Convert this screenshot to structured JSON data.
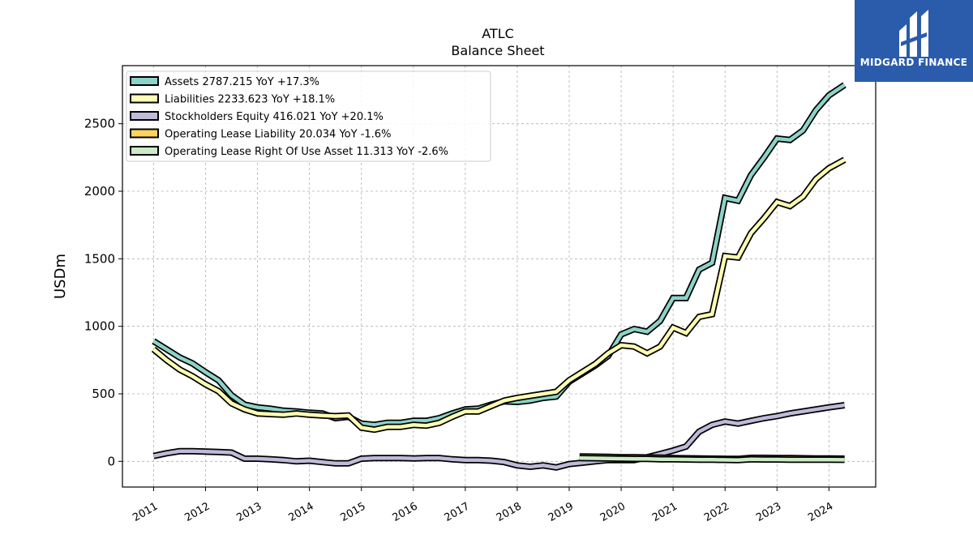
{
  "brand": {
    "name": "MIDGARD FINANCE",
    "bg_color": "#2b5cab"
  },
  "chart_data": {
    "type": "line",
    "title": "ATLC",
    "subtitle": "Balance  Sheet",
    "xlabel": "",
    "ylabel": "USDm",
    "xlim": [
      2010.4,
      2024.9
    ],
    "ylim": [
      -190,
      2930
    ],
    "yticks": [
      0,
      500,
      1000,
      1500,
      2000,
      2500
    ],
    "xticks": [
      "2011",
      "2012",
      "2013",
      "2014",
      "2015",
      "2016",
      "2017",
      "2018",
      "2019",
      "2020",
      "2021",
      "2022",
      "2023",
      "2024"
    ],
    "grid": true,
    "legend_position": "top-left",
    "series": [
      {
        "name": "Assets",
        "legend_label": "Assets  2787.215 YoY +17.3%",
        "color": "#8dd3c7",
        "x": [
          2011.0,
          2011.25,
          2011.5,
          2011.75,
          2012.0,
          2012.25,
          2012.5,
          2012.75,
          2013.0,
          2013.25,
          2013.5,
          2013.75,
          2014.0,
          2014.25,
          2014.5,
          2014.75,
          2015.0,
          2015.25,
          2015.5,
          2015.75,
          2016.0,
          2016.25,
          2016.5,
          2016.75,
          2017.0,
          2017.25,
          2017.5,
          2017.75,
          2018.0,
          2018.25,
          2018.5,
          2018.75,
          2019.0,
          2019.25,
          2019.5,
          2019.75,
          2020.0,
          2020.25,
          2020.5,
          2020.75,
          2021.0,
          2021.25,
          2021.5,
          2021.75,
          2022.0,
          2022.25,
          2022.5,
          2022.75,
          2023.0,
          2023.25,
          2023.5,
          2023.75,
          2024.0,
          2024.3
        ],
        "values": [
          890,
          830,
          770,
          725,
          660,
          600,
          490,
          420,
          400,
          390,
          375,
          370,
          360,
          355,
          320,
          330,
          280,
          270,
          285,
          285,
          300,
          300,
          320,
          355,
          385,
          390,
          420,
          445,
          440,
          450,
          470,
          480,
          590,
          650,
          710,
          780,
          940,
          980,
          960,
          1040,
          1210,
          1210,
          1420,
          1470,
          1950,
          1930,
          2120,
          2250,
          2390,
          2380,
          2450,
          2600,
          2710,
          2787.215
        ]
      },
      {
        "name": "Liabilities",
        "legend_label": "Liabilities  2233.623 YoY +18.1%",
        "color": "#ffffb3",
        "x": [
          2011.0,
          2011.25,
          2011.5,
          2011.75,
          2012.0,
          2012.25,
          2012.5,
          2012.75,
          2013.0,
          2013.25,
          2013.5,
          2013.75,
          2014.0,
          2014.25,
          2014.5,
          2014.75,
          2015.0,
          2015.25,
          2015.5,
          2015.75,
          2016.0,
          2016.25,
          2016.5,
          2016.75,
          2017.0,
          2017.25,
          2017.5,
          2017.75,
          2018.0,
          2018.25,
          2018.5,
          2018.75,
          2019.0,
          2019.25,
          2019.5,
          2019.75,
          2020.0,
          2020.25,
          2020.5,
          2020.75,
          2021.0,
          2021.25,
          2021.5,
          2021.75,
          2022.0,
          2022.25,
          2022.5,
          2022.75,
          2023.0,
          2023.25,
          2023.5,
          2023.75,
          2024.0,
          2024.3
        ],
        "values": [
          830,
          750,
          680,
          630,
          570,
          520,
          430,
          385,
          355,
          350,
          345,
          355,
          345,
          340,
          335,
          340,
          250,
          235,
          255,
          255,
          270,
          265,
          285,
          330,
          370,
          370,
          410,
          450,
          470,
          485,
          500,
          515,
          600,
          660,
          720,
          800,
          860,
          850,
          800,
          850,
          990,
          950,
          1070,
          1090,
          1520,
          1510,
          1690,
          1800,
          1920,
          1890,
          1960,
          2090,
          2170,
          2233.623
        ]
      },
      {
        "name": "Stockholders Equity",
        "legend_label": "Stockholders Equity  416.021 YoY +20.1%",
        "color": "#bebada",
        "x": [
          2011.0,
          2011.25,
          2011.5,
          2011.75,
          2012.0,
          2012.25,
          2012.5,
          2012.75,
          2013.0,
          2013.25,
          2013.5,
          2013.75,
          2014.0,
          2014.25,
          2014.5,
          2014.75,
          2015.0,
          2015.25,
          2015.5,
          2015.75,
          2016.0,
          2016.25,
          2016.5,
          2016.75,
          2017.0,
          2017.25,
          2017.5,
          2017.75,
          2018.0,
          2018.25,
          2018.5,
          2018.75,
          2019.0,
          2019.25,
          2019.5,
          2019.75,
          2020.0,
          2020.25,
          2020.5,
          2020.75,
          2021.0,
          2021.25,
          2021.5,
          2021.75,
          2022.0,
          2022.25,
          2022.5,
          2022.75,
          2023.0,
          2023.25,
          2023.5,
          2023.75,
          2024.0,
          2024.3
        ],
        "values": [
          40,
          60,
          75,
          75,
          72,
          70,
          65,
          20,
          20,
          15,
          10,
          0,
          5,
          -5,
          -15,
          -15,
          20,
          25,
          25,
          25,
          22,
          25,
          25,
          15,
          10,
          10,
          5,
          -5,
          -30,
          -40,
          -30,
          -45,
          -20,
          -10,
          0,
          10,
          10,
          10,
          30,
          55,
          80,
          110,
          220,
          270,
          295,
          280,
          300,
          320,
          335,
          355,
          370,
          385,
          400,
          416.021
        ]
      },
      {
        "name": "Operating Lease Liability",
        "legend_label": "Operating Lease Liability  20.034 YoY -1.6%",
        "color": "#fdd35f",
        "x": [
          2019.2,
          2019.5,
          2019.75,
          2020.0,
          2020.25,
          2020.5,
          2020.75,
          2021.0,
          2021.25,
          2021.5,
          2021.75,
          2022.0,
          2022.25,
          2022.5,
          2022.75,
          2023.0,
          2023.25,
          2023.5,
          2023.75,
          2024.0,
          2024.3
        ],
        "values": [
          37,
          35,
          33,
          31,
          30,
          29,
          27,
          25,
          23,
          22,
          20,
          19,
          18,
          26,
          26,
          25,
          24,
          23,
          22,
          21,
          20.034
        ]
      },
      {
        "name": "Operating Lease Right Of Use Asset",
        "legend_label": "Operating Lease Right Of Use Asset  11.313 YoY -2.6%",
        "color": "#ccebc5",
        "x": [
          2019.2,
          2019.5,
          2019.75,
          2020.0,
          2020.25,
          2020.5,
          2020.75,
          2021.0,
          2021.25,
          2021.5,
          2021.75,
          2022.0,
          2022.25,
          2022.5,
          2022.75,
          2023.0,
          2023.25,
          2023.5,
          2023.75,
          2024.0,
          2024.3
        ],
        "values": [
          25,
          23,
          21,
          20,
          19,
          18,
          16,
          15,
          14,
          13,
          12,
          11,
          10,
          15,
          14,
          14,
          13,
          13,
          12,
          12,
          11.313
        ]
      }
    ]
  }
}
